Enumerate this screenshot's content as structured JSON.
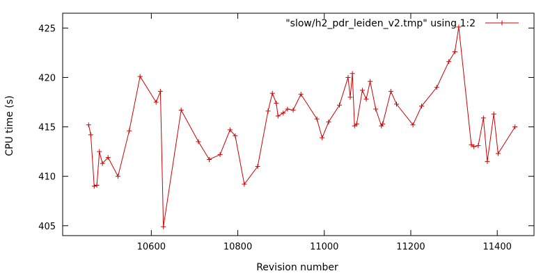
{
  "chart_data": {
    "type": "line",
    "title": "",
    "xlabel": "Revision number",
    "ylabel": "CPU time (s)",
    "xlim": [
      10395,
      11485
    ],
    "ylim": [
      404,
      426.5
    ],
    "xticks": [
      10600,
      10800,
      11000,
      11200,
      11400
    ],
    "yticks": [
      405,
      410,
      415,
      420,
      425
    ],
    "grid": false,
    "legend_position": "top-right",
    "colors": {
      "series": "#cc0000",
      "axis": "#000000"
    },
    "series": [
      {
        "name": "\"slow/h2_pdr_leiden_v2.tmp\" using 1:2",
        "marker": "plus",
        "points": [
          [
            10455,
            415.2
          ],
          [
            10460,
            414.2
          ],
          [
            10468,
            409.0
          ],
          [
            10474,
            409.1
          ],
          [
            10480,
            412.5
          ],
          [
            10487,
            411.3
          ],
          [
            10500,
            411.9
          ],
          [
            10523,
            410.0
          ],
          [
            10549,
            414.6
          ],
          [
            10574,
            420.1
          ],
          [
            10611,
            417.5
          ],
          [
            10621,
            418.6
          ],
          [
            10628,
            404.9
          ],
          [
            10669,
            416.7
          ],
          [
            10709,
            413.5
          ],
          [
            10734,
            411.7
          ],
          [
            10759,
            412.2
          ],
          [
            10782,
            414.7
          ],
          [
            10794,
            414.1
          ],
          [
            10815,
            409.2
          ],
          [
            10846,
            411.0
          ],
          [
            10870,
            416.6
          ],
          [
            10880,
            418.4
          ],
          [
            10889,
            417.4
          ],
          [
            10893,
            416.1
          ],
          [
            10905,
            416.4
          ],
          [
            10915,
            416.8
          ],
          [
            10928,
            416.7
          ],
          [
            10946,
            418.3
          ],
          [
            10983,
            415.8
          ],
          [
            10995,
            413.9
          ],
          [
            11010,
            415.5
          ],
          [
            11035,
            417.2
          ],
          [
            11055,
            420.0
          ],
          [
            11060,
            418.0
          ],
          [
            11065,
            420.4
          ],
          [
            11070,
            415.1
          ],
          [
            11075,
            415.3
          ],
          [
            11088,
            418.7
          ],
          [
            11097,
            417.8
          ],
          [
            11106,
            419.6
          ],
          [
            11119,
            416.8
          ],
          [
            11132,
            415.1
          ],
          [
            11135,
            415.3
          ],
          [
            11154,
            418.6
          ],
          [
            11167,
            417.3
          ],
          [
            11205,
            415.2
          ],
          [
            11225,
            417.1
          ],
          [
            11260,
            419.0
          ],
          [
            11288,
            421.6
          ],
          [
            11302,
            422.6
          ],
          [
            11311,
            425.1
          ],
          [
            11340,
            413.2
          ],
          [
            11346,
            413.0
          ],
          [
            11356,
            413.1
          ],
          [
            11368,
            415.9
          ],
          [
            11377,
            411.5
          ],
          [
            11392,
            416.3
          ],
          [
            11402,
            412.3
          ],
          [
            11441,
            415.0
          ]
        ]
      }
    ]
  }
}
